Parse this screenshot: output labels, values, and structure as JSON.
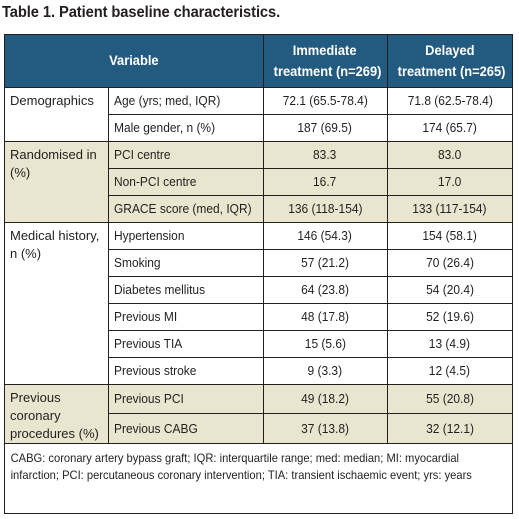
{
  "title": "Table 1. Patient baseline characteristics.",
  "header": {
    "variable": "Variable",
    "col1_line1": "Immediate",
    "col1_line2": "treatment (n=269)",
    "col2_line1": "Delayed",
    "col2_line2": "treatment (n=265)"
  },
  "groups": [
    {
      "label": "Demographics",
      "shaded": false,
      "rows": [
        {
          "variable": "Age (yrs; med, IQR)",
          "immediate": "72.1 (65.5-78.4)",
          "delayed": "71.8 (62.5-78.4)"
        },
        {
          "variable": "Male gender, n (%)",
          "immediate": "187 (69.5)",
          "delayed": "174 (65.7)"
        }
      ]
    },
    {
      "label": "Randomised in (%)",
      "shaded": true,
      "rows": [
        {
          "variable": "PCI centre",
          "immediate": "83.3",
          "delayed": "83.0"
        },
        {
          "variable": "Non-PCI centre",
          "immediate": "16.7",
          "delayed": "17.0"
        },
        {
          "variable": "GRACE score (med, IQR)",
          "immediate": "136 (118-154)",
          "delayed": "133 (117-154)"
        }
      ]
    },
    {
      "label": "Medical history, n (%)",
      "shaded": false,
      "rows": [
        {
          "variable": "Hypertension",
          "immediate": "146 (54.3)",
          "delayed": "154 (58.1)"
        },
        {
          "variable": "Smoking",
          "immediate": "57 (21.2)",
          "delayed": "70 (26.4)"
        },
        {
          "variable": "Diabetes mellitus",
          "immediate": "64 (23.8)",
          "delayed": "54 (20.4)"
        },
        {
          "variable": "Previous MI",
          "immediate": "48 (17.8)",
          "delayed": "52 (19.6)"
        },
        {
          "variable": "Previous TIA",
          "immediate": "15 (5.6)",
          "delayed": "13 (4.9)"
        },
        {
          "variable": "Previous stroke",
          "immediate": "9 (3.3)",
          "delayed": "12 (4.5)"
        }
      ]
    },
    {
      "label": "Previous coronary procedures (%)",
      "shaded": true,
      "rows": [
        {
          "variable": "Previous PCI",
          "immediate": "49 (18.2)",
          "delayed": "55 (20.8)"
        },
        {
          "variable": "Previous CABG",
          "immediate": "37 (13.8)",
          "delayed": "32 (12.1)"
        }
      ]
    }
  ],
  "footnote": "CABG: coronary artery bypass graft; IQR: interquartile range; med: median; MI: myocardial infarction; PCI: percutaneous coronary intervention; TIA: transient ischaemic event; yrs: years",
  "colors": {
    "header_bg": "#235b80",
    "shaded_bg": "#e9e5cf",
    "text": "#231f20"
  }
}
